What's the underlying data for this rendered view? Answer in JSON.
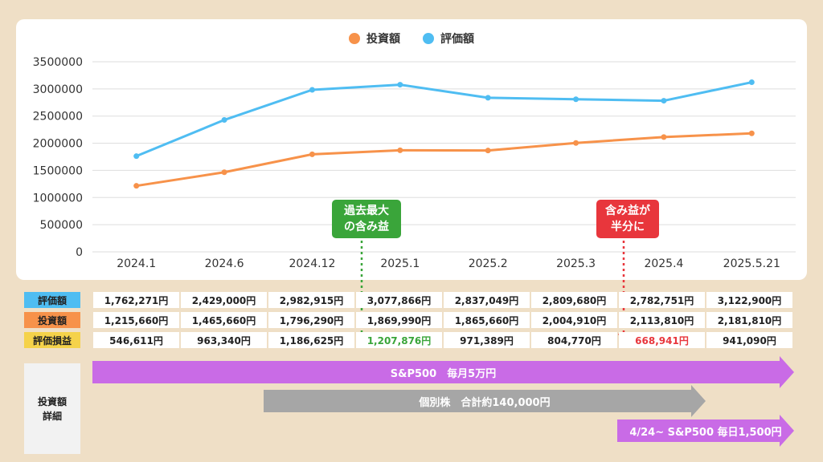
{
  "chart_data": {
    "type": "line",
    "categories": [
      "2024.1",
      "2024.6",
      "2024.12",
      "2025.1",
      "2025.2",
      "2025.3",
      "2025.4",
      "2025.5.21"
    ],
    "series": [
      {
        "name": "投資額",
        "color": "#f7924a",
        "values": [
          1215660,
          1465660,
          1796290,
          1869990,
          1865660,
          2004910,
          2113810,
          2181810
        ]
      },
      {
        "name": "評価額",
        "color": "#4fbdf2",
        "values": [
          1762271,
          2429000,
          2982915,
          3077866,
          2837049,
          2809680,
          2782751,
          3122900
        ]
      }
    ],
    "ylim": [
      0,
      3500000
    ],
    "yticks": [
      "0",
      "500000",
      "1000000",
      "1500000",
      "2000000",
      "2500000",
      "3000000",
      "3500000"
    ],
    "legend": "top-center",
    "grid": true
  },
  "legend": {
    "invest_label": "投資額",
    "value_label": "評価額"
  },
  "callouts": {
    "max_line1": "過去最大",
    "max_line2": "の含み益",
    "half_line1": "含み益が",
    "half_line2": "半分に"
  },
  "table": {
    "row_labels": [
      "評価額",
      "投資額",
      "評価損益"
    ],
    "row_colors": [
      "#4fbdf2",
      "#f7924a",
      "#f5d24a"
    ],
    "valuation": [
      "1,762,271円",
      "2,429,000円",
      "2,982,915円",
      "3,077,866円",
      "2,837,049円",
      "2,809,680円",
      "2,782,751円",
      "3,122,900円"
    ],
    "investment": [
      "1,215,660円",
      "1,465,660円",
      "1,796,290円",
      "1,869,990円",
      "1,865,660円",
      "2,004,910円",
      "2,113,810円",
      "2,181,810円"
    ],
    "pnl": [
      "546,611円",
      "963,340円",
      "1,186,625円",
      "1,207,876円",
      "971,389円",
      "804,770円",
      "668,941円",
      "941,090円"
    ]
  },
  "details": {
    "label_line1": "投資額",
    "label_line2": "詳細",
    "sp500_monthly": "S&P500　毎月5万円",
    "individual": "個別株　合計約140,000円",
    "sp500_daily": "4/24~ S&P500 毎日1,500円"
  },
  "colors": {
    "purple": "#c96be6",
    "gray": "#a6a6a6",
    "green": "#3aa53a",
    "red": "#e8363c"
  }
}
